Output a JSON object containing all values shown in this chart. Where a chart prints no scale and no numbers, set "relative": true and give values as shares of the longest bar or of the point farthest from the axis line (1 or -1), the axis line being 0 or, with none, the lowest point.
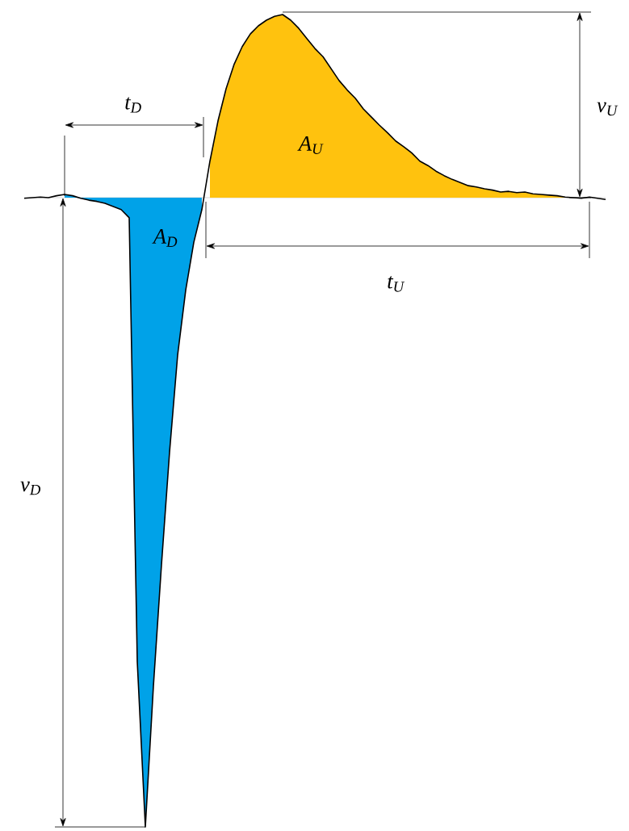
{
  "chart_data": {
    "type": "line",
    "relative": true,
    "categories": [
      null,
      null,
      null,
      null,
      null,
      null,
      null,
      null,
      null,
      null,
      null,
      null,
      null,
      null,
      null,
      null,
      null,
      null,
      null,
      null,
      null,
      null,
      null,
      null,
      null,
      null,
      null,
      null,
      null,
      null,
      null,
      null,
      null,
      null,
      null,
      null,
      null,
      null,
      null,
      null,
      null,
      null,
      null,
      null,
      null,
      null,
      null,
      null,
      null,
      null,
      null,
      null,
      null,
      null,
      null,
      null,
      null,
      null,
      null,
      null,
      null,
      null,
      null,
      null,
      null,
      null,
      null,
      null,
      null,
      null,
      null,
      null,
      null
    ],
    "series": [
      {
        "type": "area",
        "color": "#00a2e8",
        "values": [
          null,
          null,
          null,
          null,
          null,
          0.005,
          0.003,
          -0.001,
          -0.004,
          -0.006,
          -0.009,
          -0.014,
          -0.019,
          -0.032,
          -0.737,
          -1,
          -0.776,
          -0.583,
          -0.404,
          -0.25,
          -0.147,
          -0.071,
          -0.019,
          null,
          null,
          null,
          null,
          null,
          null,
          null,
          null,
          null,
          null,
          null,
          null,
          null,
          null,
          null,
          null,
          null,
          null,
          null,
          null,
          null,
          null,
          null,
          null,
          null,
          null,
          null,
          null,
          null,
          null,
          null,
          null,
          null,
          null,
          null,
          null,
          null,
          null,
          null,
          null,
          null,
          null,
          null,
          null,
          null,
          null,
          null,
          null,
          null,
          null
        ]
      },
      {
        "type": "area",
        "color": "#ffc20e",
        "values": [
          null,
          null,
          null,
          null,
          null,
          null,
          null,
          null,
          null,
          null,
          null,
          null,
          null,
          null,
          null,
          null,
          null,
          null,
          null,
          null,
          null,
          null,
          null,
          0.058,
          0.122,
          0.173,
          0.212,
          0.24,
          0.26,
          0.273,
          0.282,
          0.288,
          0.291,
          0.282,
          0.269,
          0.253,
          0.237,
          0.224,
          0.205,
          0.186,
          0.171,
          0.158,
          0.141,
          0.128,
          0.115,
          0.103,
          0.09,
          0.081,
          0.071,
          0.058,
          0.051,
          0.042,
          0.035,
          0.029,
          0.024,
          0.019,
          0.017,
          0.014,
          0.012,
          0.009,
          0.01,
          0.008,
          0.009,
          0.006,
          0.005,
          0.004,
          0.003,
          0.001,
          0,
          null,
          null,
          null,
          null
        ]
      },
      {
        "type": "line",
        "color": "#000000",
        "values": [
          -0.001,
          0,
          0.001,
          0,
          0.003,
          0.005,
          0.003,
          -0.001,
          -0.004,
          -0.006,
          -0.009,
          -0.014,
          -0.019,
          -0.032,
          -0.737,
          -1,
          -0.776,
          -0.583,
          -0.404,
          -0.25,
          -0.147,
          -0.071,
          -0.019,
          0.058,
          0.122,
          0.173,
          0.212,
          0.24,
          0.26,
          0.273,
          0.282,
          0.288,
          0.291,
          0.282,
          0.269,
          0.253,
          0.237,
          0.224,
          0.205,
          0.186,
          0.171,
          0.158,
          0.141,
          0.128,
          0.115,
          0.103,
          0.09,
          0.081,
          0.071,
          0.058,
          0.051,
          0.042,
          0.035,
          0.029,
          0.024,
          0.019,
          0.017,
          0.014,
          0.012,
          0.009,
          0.01,
          0.008,
          0.009,
          0.006,
          0.005,
          0.004,
          0.003,
          0.001,
          0,
          -0.001,
          0.001,
          -0.001,
          -0.003
        ]
      }
    ],
    "annotations": [
      "t$_{D}$",
      "A$_{D}$",
      "v$_{D}$",
      "A$_{U}$",
      "v$_{U}$",
      "t$_{U}$"
    ]
  }
}
